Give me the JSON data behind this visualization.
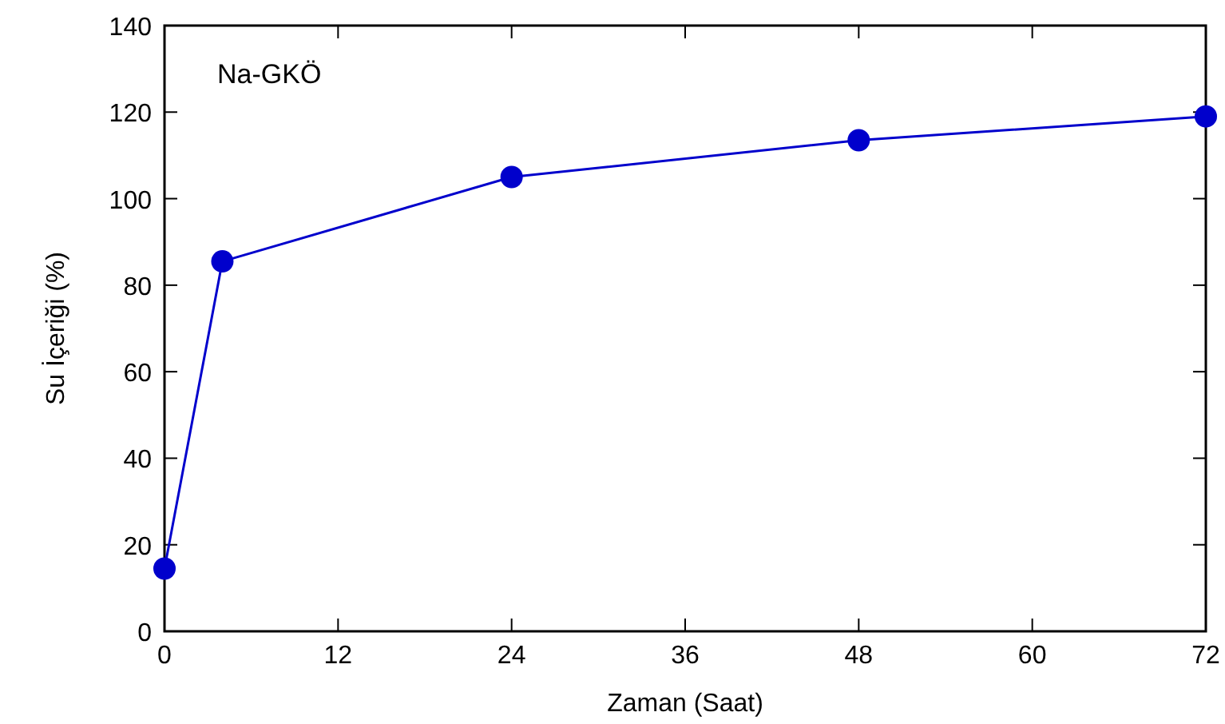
{
  "chart_data": {
    "type": "line",
    "xlabel": "Zaman (Saat)",
    "ylabel": "Su İçeriği (%)",
    "annotations": [
      "Na-GKÖ"
    ],
    "x": [
      0,
      4,
      24,
      48,
      72
    ],
    "series": [
      {
        "color": "#0000cc",
        "values": [
          14.5,
          85.5,
          105,
          113.5,
          119
        ]
      }
    ],
    "xlim": [
      0,
      72
    ],
    "xticks": [
      0,
      12,
      24,
      36,
      48,
      60,
      72
    ],
    "ylim": [
      0,
      140
    ],
    "yticks": [
      0,
      20,
      40,
      60,
      80,
      100,
      120,
      140
    ],
    "marker": "circle",
    "line_style": "solid"
  }
}
